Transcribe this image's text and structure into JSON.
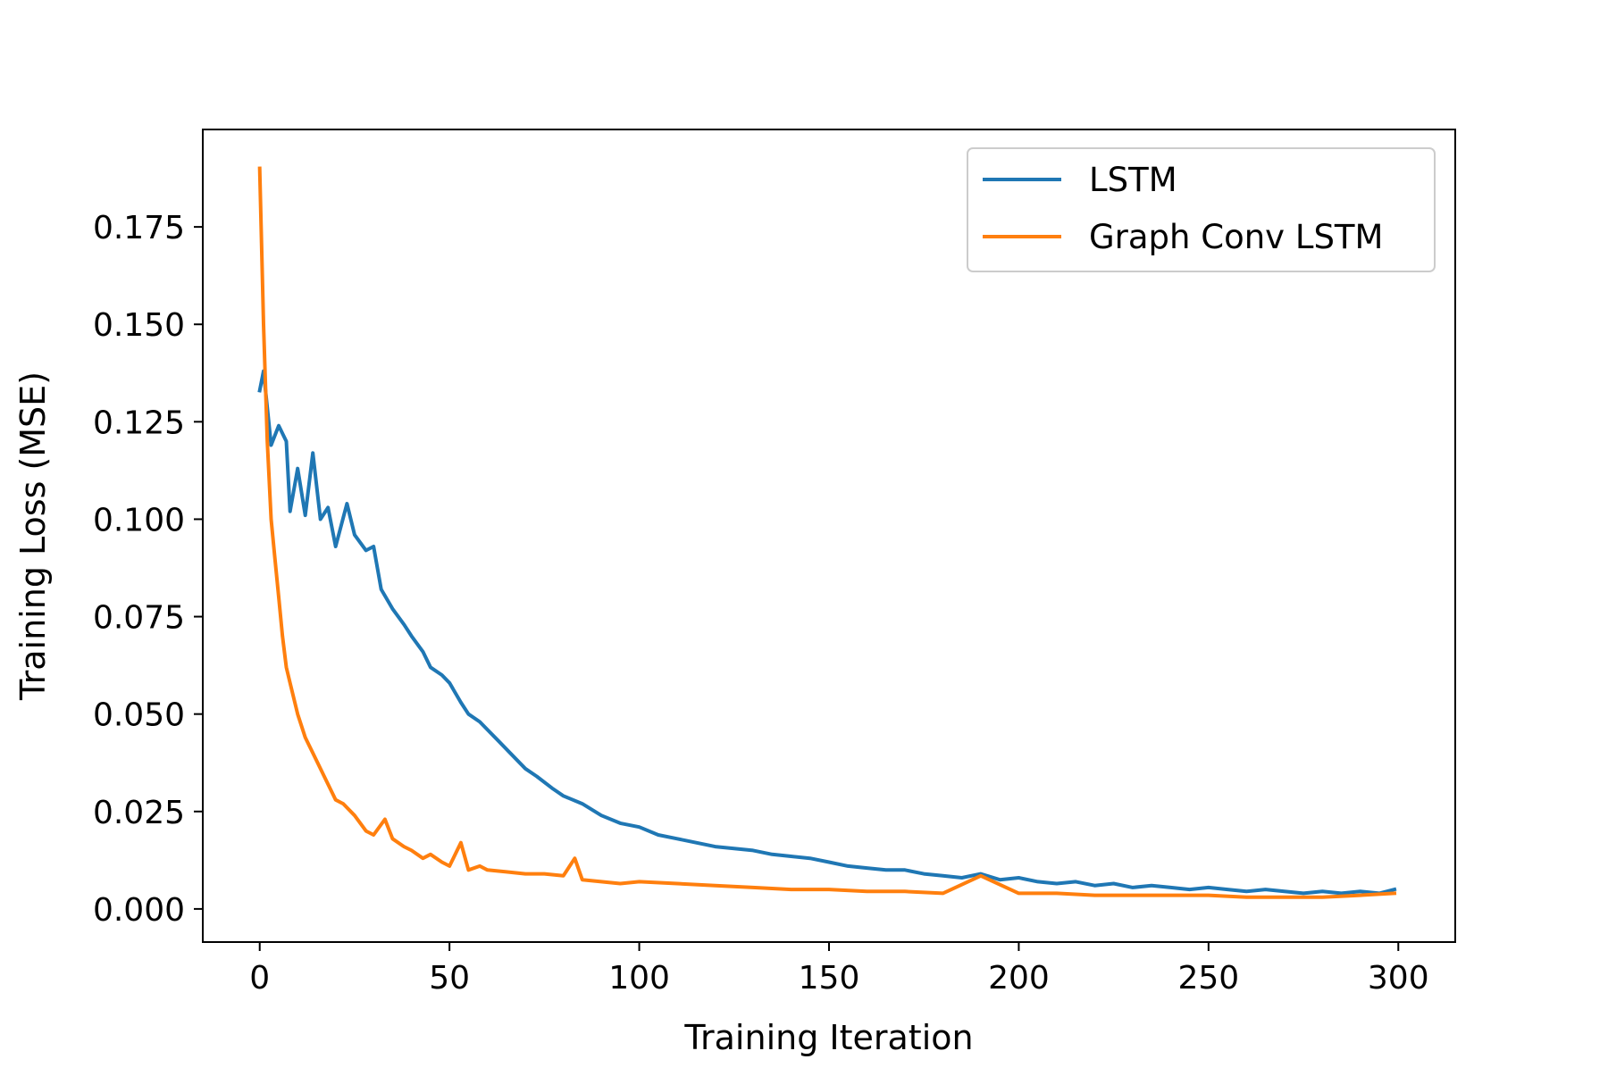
{
  "chart_data": {
    "type": "line",
    "title": "",
    "xlabel": "Training Iteration",
    "ylabel": "Training Loss (MSE)",
    "xlim": [
      -15,
      315
    ],
    "ylim": [
      -0.0085,
      0.2
    ],
    "xticks": [
      0,
      50,
      100,
      150,
      200,
      250,
      300
    ],
    "xtick_labels": [
      "0",
      "50",
      "100",
      "150",
      "200",
      "250",
      "300"
    ],
    "yticks": [
      0.0,
      0.025,
      0.05,
      0.075,
      0.1,
      0.125,
      0.15,
      0.175
    ],
    "ytick_labels": [
      "0.000",
      "0.025",
      "0.050",
      "0.075",
      "0.100",
      "0.125",
      "0.150",
      "0.175"
    ],
    "grid": false,
    "legend_position": "top-right",
    "series": [
      {
        "name": "LSTM",
        "color": "#1f77b4",
        "x": [
          0,
          1,
          3,
          5,
          7,
          8,
          10,
          12,
          14,
          16,
          18,
          20,
          23,
          25,
          28,
          30,
          32,
          35,
          38,
          40,
          43,
          45,
          48,
          50,
          53,
          55,
          58,
          60,
          63,
          66,
          70,
          73,
          77,
          80,
          85,
          90,
          95,
          100,
          105,
          110,
          115,
          120,
          125,
          130,
          135,
          140,
          145,
          150,
          155,
          160,
          165,
          170,
          175,
          180,
          185,
          190,
          195,
          200,
          205,
          210,
          215,
          220,
          225,
          230,
          235,
          240,
          245,
          250,
          255,
          260,
          265,
          270,
          275,
          280,
          285,
          290,
          295,
          299
        ],
        "y": [
          0.133,
          0.138,
          0.119,
          0.124,
          0.12,
          0.102,
          0.113,
          0.101,
          0.117,
          0.1,
          0.103,
          0.093,
          0.104,
          0.096,
          0.092,
          0.093,
          0.082,
          0.077,
          0.073,
          0.07,
          0.066,
          0.062,
          0.06,
          0.058,
          0.053,
          0.05,
          0.048,
          0.046,
          0.043,
          0.04,
          0.036,
          0.034,
          0.031,
          0.029,
          0.027,
          0.024,
          0.022,
          0.021,
          0.019,
          0.018,
          0.017,
          0.016,
          0.0155,
          0.015,
          0.014,
          0.0135,
          0.013,
          0.012,
          0.011,
          0.0105,
          0.01,
          0.01,
          0.009,
          0.0085,
          0.008,
          0.009,
          0.0075,
          0.008,
          0.007,
          0.0065,
          0.007,
          0.006,
          0.0065,
          0.0055,
          0.006,
          0.0055,
          0.005,
          0.0055,
          0.005,
          0.0045,
          0.005,
          0.0045,
          0.004,
          0.0045,
          0.004,
          0.0045,
          0.004,
          0.005
        ]
      },
      {
        "name": "Graph Conv LSTM",
        "color": "#ff7f0e",
        "x": [
          0,
          1,
          2,
          3,
          4,
          5,
          6,
          7,
          8,
          10,
          12,
          14,
          16,
          18,
          20,
          22,
          25,
          28,
          30,
          33,
          35,
          38,
          40,
          43,
          45,
          48,
          50,
          53,
          55,
          58,
          60,
          65,
          70,
          75,
          80,
          83,
          85,
          90,
          95,
          100,
          110,
          120,
          130,
          140,
          150,
          160,
          170,
          180,
          190,
          200,
          210,
          220,
          230,
          240,
          250,
          260,
          270,
          280,
          290,
          299
        ],
        "y": [
          0.19,
          0.15,
          0.12,
          0.1,
          0.09,
          0.08,
          0.07,
          0.062,
          0.058,
          0.05,
          0.044,
          0.04,
          0.036,
          0.032,
          0.028,
          0.027,
          0.024,
          0.02,
          0.019,
          0.023,
          0.018,
          0.016,
          0.015,
          0.013,
          0.014,
          0.012,
          0.011,
          0.017,
          0.01,
          0.011,
          0.01,
          0.0095,
          0.009,
          0.009,
          0.0085,
          0.013,
          0.0075,
          0.007,
          0.0065,
          0.007,
          0.0065,
          0.006,
          0.0055,
          0.005,
          0.005,
          0.0045,
          0.0045,
          0.004,
          0.0085,
          0.004,
          0.004,
          0.0035,
          0.0035,
          0.0035,
          0.0035,
          0.003,
          0.003,
          0.003,
          0.0035,
          0.004
        ]
      }
    ]
  }
}
